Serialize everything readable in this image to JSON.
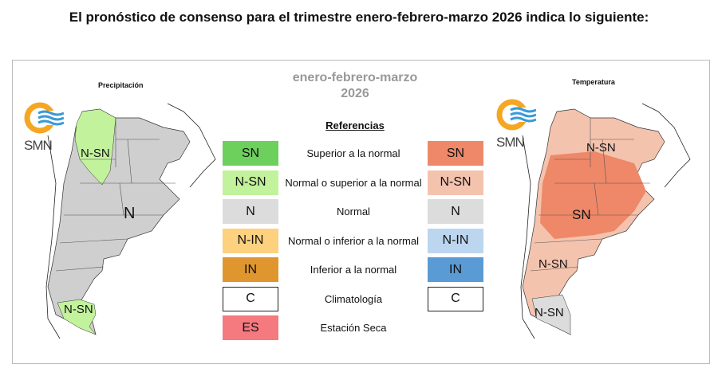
{
  "title": "El pronóstico de consenso para el trimestre enero-febrero-marzo 2026 indica lo siguiente:",
  "period": {
    "line1": "enero-febrero-marzo",
    "line2": "2026"
  },
  "references_title": "Referencias",
  "legend": [
    {
      "code": "SN",
      "description": "Superior a la normal",
      "precip_color": "#6dcf5c",
      "temp_color": "#ee8868",
      "temp": true
    },
    {
      "code": "N-SN",
      "description": "Normal o superior a la normal",
      "precip_color": "#c2f29c",
      "temp_color": "#f4c3ae",
      "temp": true
    },
    {
      "code": "N",
      "description": "Normal",
      "precip_color": "#dcdcdc",
      "temp_color": "#dcdcdc",
      "temp": true
    },
    {
      "code": "N-IN",
      "description": "Normal o inferior a la normal",
      "precip_color": "#fdd17e",
      "temp_color": "#bcd6ef",
      "temp": true
    },
    {
      "code": "IN",
      "description": "Inferior a la normal",
      "precip_color": "#e0962e",
      "temp_color": "#5b9bd5",
      "temp": true
    },
    {
      "code": "C",
      "description": "Climatología",
      "precip_color": "#ffffff",
      "temp_color": "#ffffff",
      "temp": true
    },
    {
      "code": "ES",
      "description": "Estación Seca",
      "precip_color": "#f47a80",
      "temp": false
    }
  ],
  "precipitation_map": {
    "title": "Precipitación",
    "labels": [
      "N-SN",
      "N",
      "N-SN"
    ]
  },
  "temperature_map": {
    "title": "Temperatura",
    "labels": [
      "N-SN",
      "SN",
      "N-SN",
      "N-SN"
    ]
  },
  "logo": {
    "text": "SMN"
  }
}
